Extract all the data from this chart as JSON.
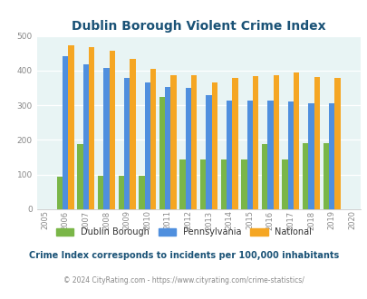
{
  "title": "Dublin Borough Violent Crime Index",
  "years": [
    2005,
    2006,
    2007,
    2008,
    2009,
    2010,
    2011,
    2012,
    2013,
    2014,
    2015,
    2016,
    2017,
    2018,
    2019,
    2020
  ],
  "dublin": [
    null,
    95,
    189,
    97,
    97,
    97,
    325,
    144,
    144,
    144,
    144,
    189,
    144,
    192,
    192,
    null
  ],
  "pennsylvania": [
    null,
    442,
    418,
    408,
    379,
    365,
    352,
    349,
    329,
    314,
    314,
    314,
    311,
    306,
    305,
    null
  ],
  "national": [
    null,
    474,
    468,
    457,
    433,
    405,
    387,
    387,
    365,
    378,
    383,
    386,
    394,
    381,
    379,
    null
  ],
  "dublin_color": "#7ab648",
  "pennsylvania_color": "#4f8fde",
  "national_color": "#f5a623",
  "bg_color": "#e8f4f4",
  "title_color": "#1a5276",
  "ylim": [
    0,
    500
  ],
  "yticks": [
    0,
    100,
    200,
    300,
    400,
    500
  ],
  "bar_width": 0.28,
  "subtitle": "Crime Index corresponds to incidents per 100,000 inhabitants",
  "footer": "© 2024 CityRating.com - https://www.cityrating.com/crime-statistics/",
  "footer_color": "#888888",
  "footer_link_color": "#4f8fde",
  "subtitle_color": "#1a5276",
  "legend_labels": [
    "Dublin Borough",
    "Pennsylvania",
    "National"
  ]
}
